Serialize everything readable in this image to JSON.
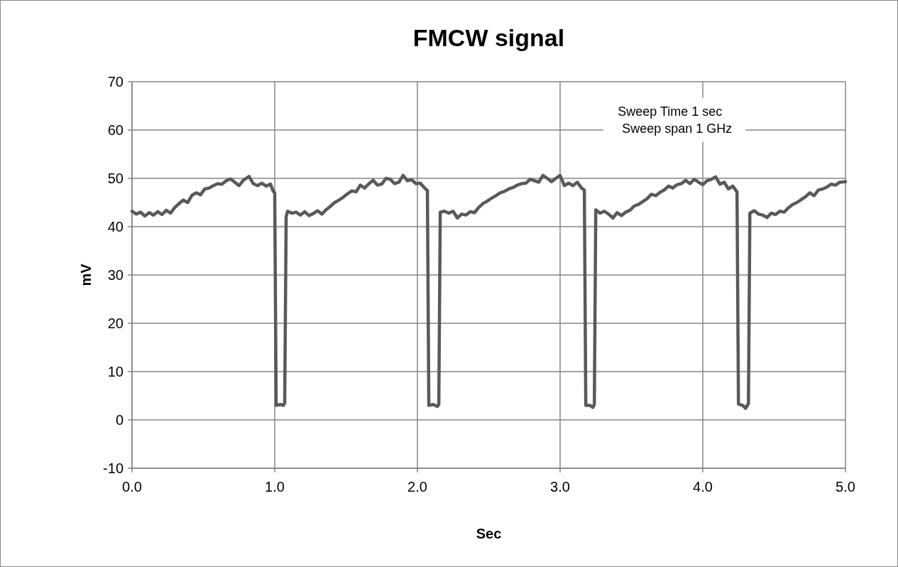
{
  "chart_data": {
    "type": "line",
    "title": "FMCW signal",
    "xlabel": "Sec",
    "ylabel": "mV",
    "annotations": [
      "Sweep  Time 1 sec",
      "Sweep span 1 GHz"
    ],
    "xlim": [
      0,
      5
    ],
    "xticks": [
      {
        "value": 0,
        "label": "0.0"
      },
      {
        "value": 1,
        "label": "1.0"
      },
      {
        "value": 2,
        "label": "2.0"
      },
      {
        "value": 3,
        "label": "3.0"
      },
      {
        "value": 4,
        "label": "4.0"
      },
      {
        "value": 5,
        "label": "5.0"
      }
    ],
    "ylim": [
      -10,
      70
    ],
    "yticks": [
      -10,
      0,
      10,
      20,
      30,
      40,
      50,
      60,
      70
    ],
    "grid": true,
    "marker": "none",
    "line_style": "solid",
    "series": [
      {
        "color": "#595959",
        "x": [
          0,
          0.03,
          0.06,
          0.09,
          0.12,
          0.15,
          0.18,
          0.21,
          0.24,
          0.27,
          0.3,
          0.33,
          0.36,
          0.39,
          0.42,
          0.45,
          0.48,
          0.51,
          0.54,
          0.57,
          0.6,
          0.63,
          0.66,
          0.69,
          0.72,
          0.75,
          0.78,
          0.82,
          0.85,
          0.88,
          0.91,
          0.94,
          0.97,
          0.99,
          1.0,
          1.01,
          1.04,
          1.06,
          1.07,
          1.08,
          1.09,
          1.12,
          1.15,
          1.18,
          1.21,
          1.24,
          1.27,
          1.3,
          1.33,
          1.36,
          1.39,
          1.42,
          1.45,
          1.48,
          1.51,
          1.54,
          1.57,
          1.6,
          1.63,
          1.66,
          1.69,
          1.72,
          1.75,
          1.78,
          1.81,
          1.84,
          1.87,
          1.9,
          1.93,
          1.96,
          1.99,
          2.02,
          2.05,
          2.07,
          2.08,
          2.11,
          2.14,
          2.15,
          2.16,
          2.19,
          2.22,
          2.25,
          2.28,
          2.31,
          2.34,
          2.37,
          2.4,
          2.43,
          2.46,
          2.49,
          2.52,
          2.55,
          2.58,
          2.61,
          2.64,
          2.67,
          2.7,
          2.73,
          2.76,
          2.79,
          2.82,
          2.85,
          2.88,
          2.91,
          2.94,
          2.97,
          3.0,
          3.03,
          3.06,
          3.09,
          3.12,
          3.15,
          3.17,
          3.18,
          3.21,
          3.23,
          3.24,
          3.25,
          3.28,
          3.31,
          3.34,
          3.37,
          3.4,
          3.43,
          3.46,
          3.49,
          3.52,
          3.55,
          3.58,
          3.61,
          3.64,
          3.67,
          3.7,
          3.73,
          3.76,
          3.79,
          3.82,
          3.85,
          3.88,
          3.91,
          3.94,
          3.97,
          4.0,
          4.03,
          4.06,
          4.09,
          4.12,
          4.15,
          4.18,
          4.21,
          4.23,
          4.24,
          4.25,
          4.28,
          4.3,
          4.32,
          4.33,
          4.36,
          4.39,
          4.42,
          4.45,
          4.48,
          4.51,
          4.54,
          4.57,
          4.6,
          4.63,
          4.66,
          4.69,
          4.72,
          4.75,
          4.78,
          4.81,
          4.84,
          4.87,
          4.9,
          4.93,
          4.96,
          5.0
        ],
        "values": [
          43.2,
          42.6,
          43.0,
          42.2,
          42.9,
          42.4,
          43.1,
          42.5,
          43.4,
          42.8,
          44.0,
          44.8,
          45.5,
          45.0,
          46.5,
          47.0,
          46.6,
          47.8,
          48.0,
          48.5,
          48.9,
          48.8,
          49.5,
          49.9,
          49.2,
          48.5,
          49.6,
          50.4,
          48.9,
          48.5,
          49.0,
          48.4,
          48.8,
          47.3,
          47.0,
          3.0,
          3.2,
          3.0,
          3.5,
          42.0,
          43.2,
          42.8,
          43.0,
          42.4,
          43.1,
          42.3,
          42.7,
          43.3,
          42.6,
          43.5,
          44.2,
          45.0,
          45.5,
          46.1,
          46.8,
          47.4,
          47.2,
          48.6,
          48.0,
          48.9,
          49.6,
          48.6,
          48.8,
          50.0,
          49.8,
          48.9,
          49.2,
          50.6,
          49.5,
          49.7,
          48.9,
          49.0,
          48.0,
          47.5,
          3.0,
          3.2,
          2.8,
          3.2,
          43.0,
          43.2,
          42.8,
          43.2,
          41.8,
          42.6,
          42.4,
          43.1,
          42.9,
          44.0,
          44.8,
          45.3,
          45.9,
          46.4,
          47.0,
          47.3,
          47.8,
          48.1,
          48.6,
          48.9,
          49.0,
          49.8,
          49.5,
          49.2,
          50.6,
          50.0,
          49.3,
          50.0,
          50.6,
          48.5,
          49.0,
          48.5,
          49.2,
          48.0,
          47.6,
          3.0,
          3.0,
          2.6,
          3.2,
          43.5,
          42.8,
          43.2,
          42.6,
          41.8,
          42.9,
          42.3,
          43.0,
          43.4,
          44.3,
          44.6,
          45.2,
          45.8,
          46.7,
          46.4,
          47.1,
          47.6,
          48.4,
          48.0,
          48.7,
          48.9,
          49.6,
          48.9,
          49.8,
          49.2,
          48.7,
          49.5,
          49.8,
          50.3,
          48.8,
          49.2,
          47.8,
          48.4,
          47.6,
          47.2,
          3.3,
          3.0,
          2.4,
          3.4,
          42.8,
          43.3,
          42.6,
          42.4,
          41.9,
          42.8,
          42.5,
          43.2,
          43.0,
          43.9,
          44.6,
          45.0,
          45.6,
          46.2,
          47.0,
          46.4,
          47.6,
          47.8,
          48.2,
          48.8,
          48.6,
          49.2,
          49.3
        ]
      }
    ]
  }
}
